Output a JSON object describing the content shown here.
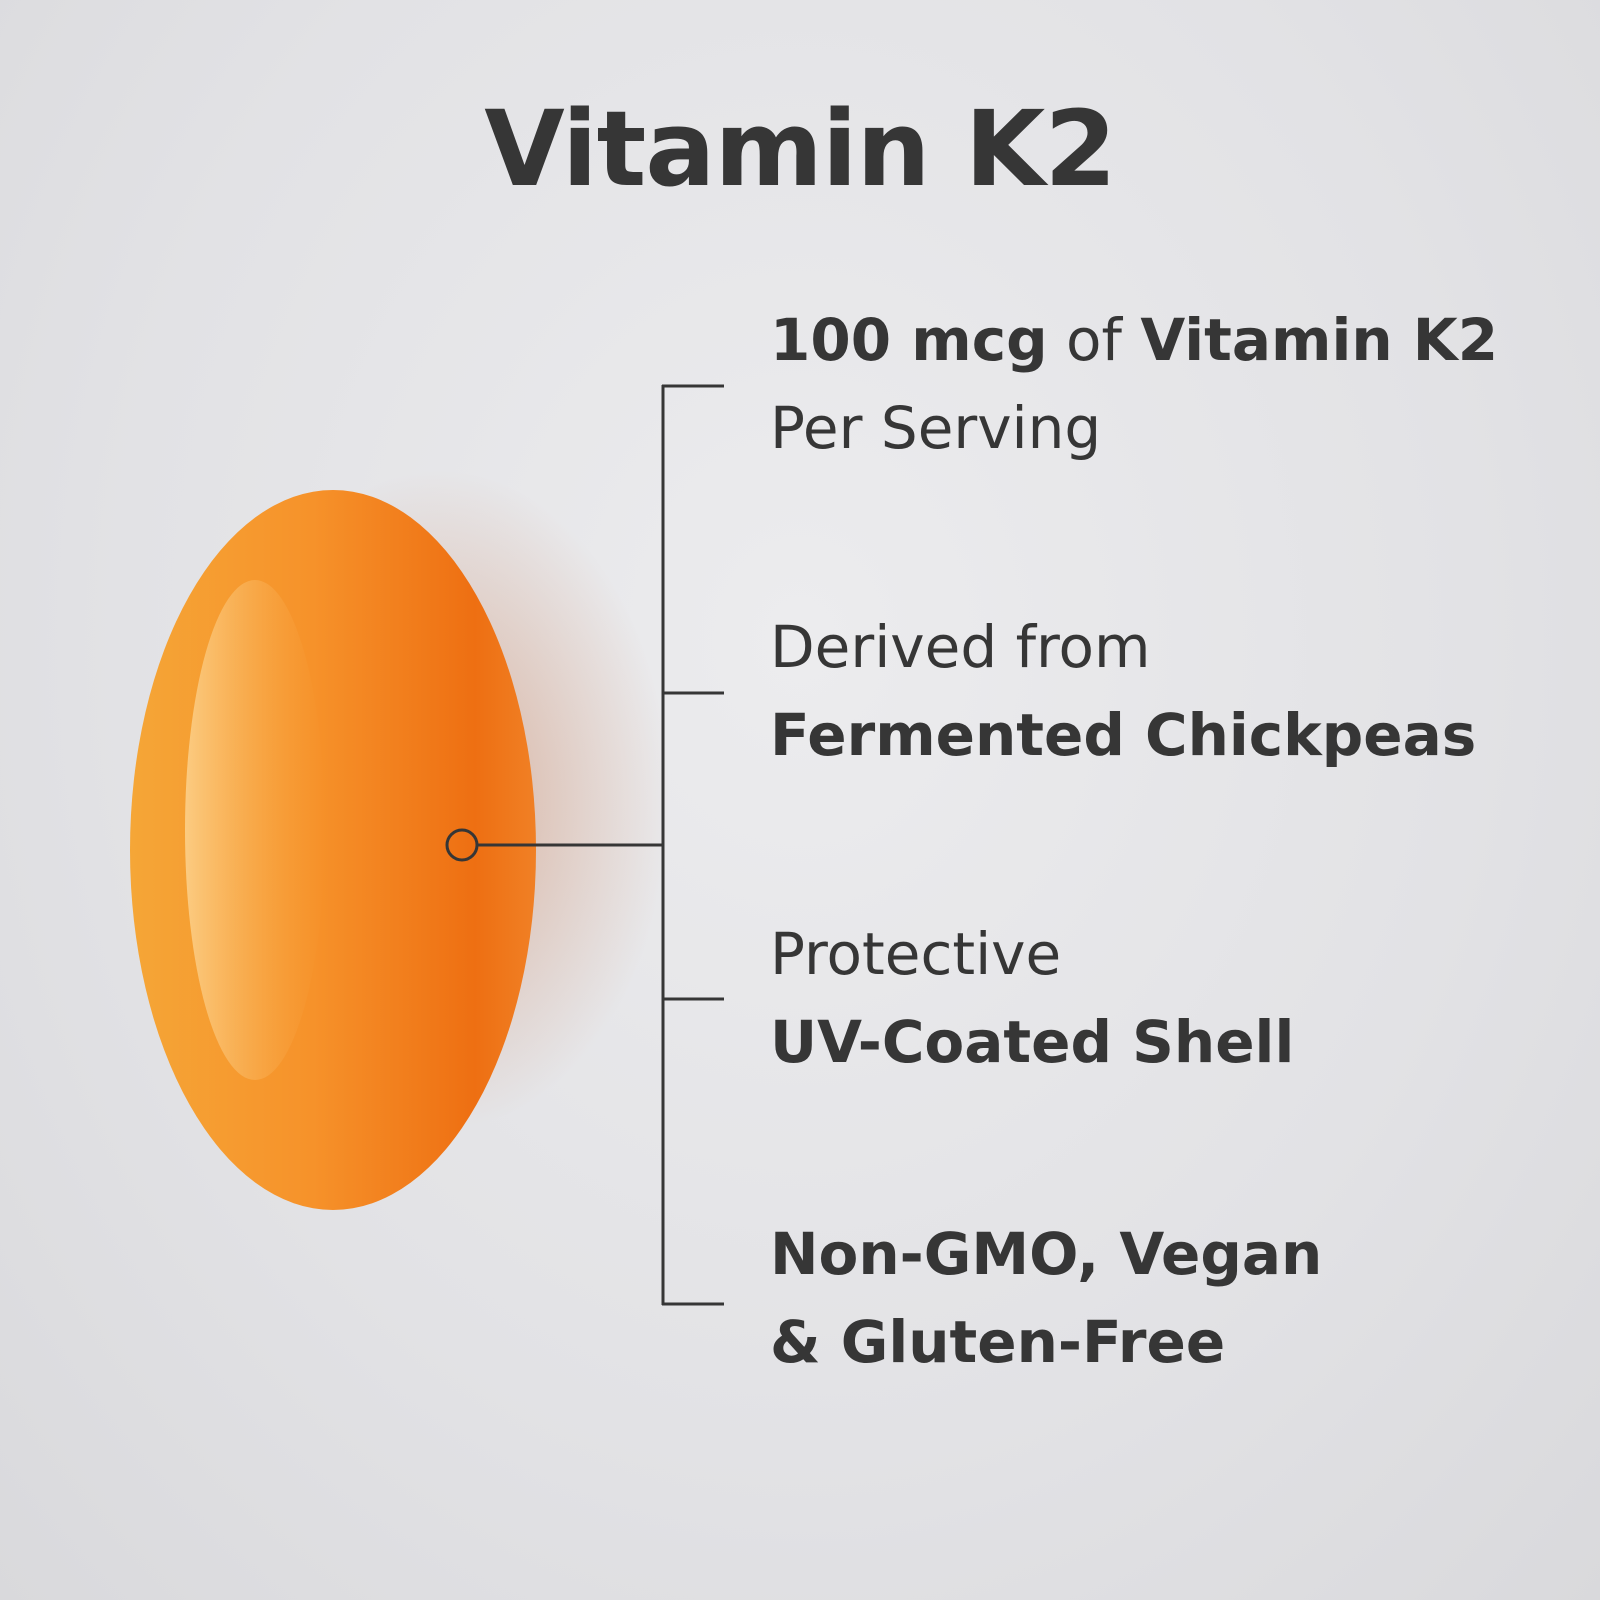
{
  "title": "Vitamin K2",
  "features": [
    {
      "part1": "100 mcg",
      "part2": " of ",
      "part3": "Vitamin K2",
      "line2": "Per Serving"
    },
    {
      "line1": "Derived from",
      "line2": "Fermented Chickpeas"
    },
    {
      "line1": "Protective",
      "line2": "UV-Coated Shell"
    },
    {
      "line1": "Non-GMO, Vegan",
      "line2": "& Gluten-Free"
    }
  ],
  "colors": {
    "text": "#363636",
    "pill": "#f07a1a",
    "background": "#e4e4e7"
  },
  "icons": {
    "pill": "softgel-capsule",
    "pointer": "circle-marker"
  }
}
